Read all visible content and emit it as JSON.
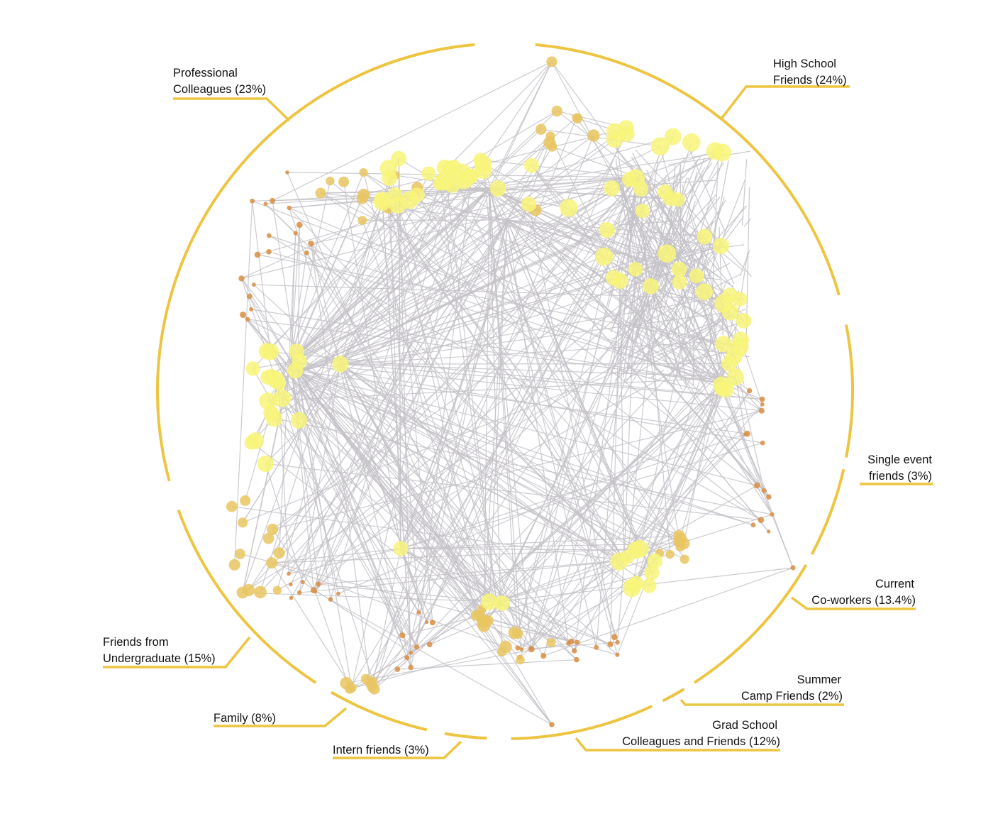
{
  "diagram": {
    "colors": {
      "ring": "#EDC541",
      "edge": "#c4c2c8",
      "node_large": "#F8F57A",
      "node_mid": "#E9C660",
      "node_small": "#D88E42"
    },
    "groups": [
      {
        "id": "professional",
        "line1": "Professional",
        "line2": "Colleagues (23%)"
      },
      {
        "id": "high-school",
        "line1": "High School",
        "line2": "Friends (24%)"
      },
      {
        "id": "single-event",
        "line1": "Single event",
        "line2": "friends (3%)"
      },
      {
        "id": "current",
        "line1": "Current",
        "line2": "Co-workers (13.4%)"
      },
      {
        "id": "summer-camp",
        "line1": "Summer",
        "line2": "Camp Friends (2%)"
      },
      {
        "id": "grad-school",
        "line1": "Grad School",
        "line2": "Colleagues and Friends (12%)"
      },
      {
        "id": "intern",
        "line1": "",
        "line2": "Intern friends (3%)"
      },
      {
        "id": "family",
        "line1": "",
        "line2": "Family (8%)"
      },
      {
        "id": "undergrad",
        "line1": "Friends from",
        "line2": "Undergraduate (15%)"
      }
    ]
  }
}
